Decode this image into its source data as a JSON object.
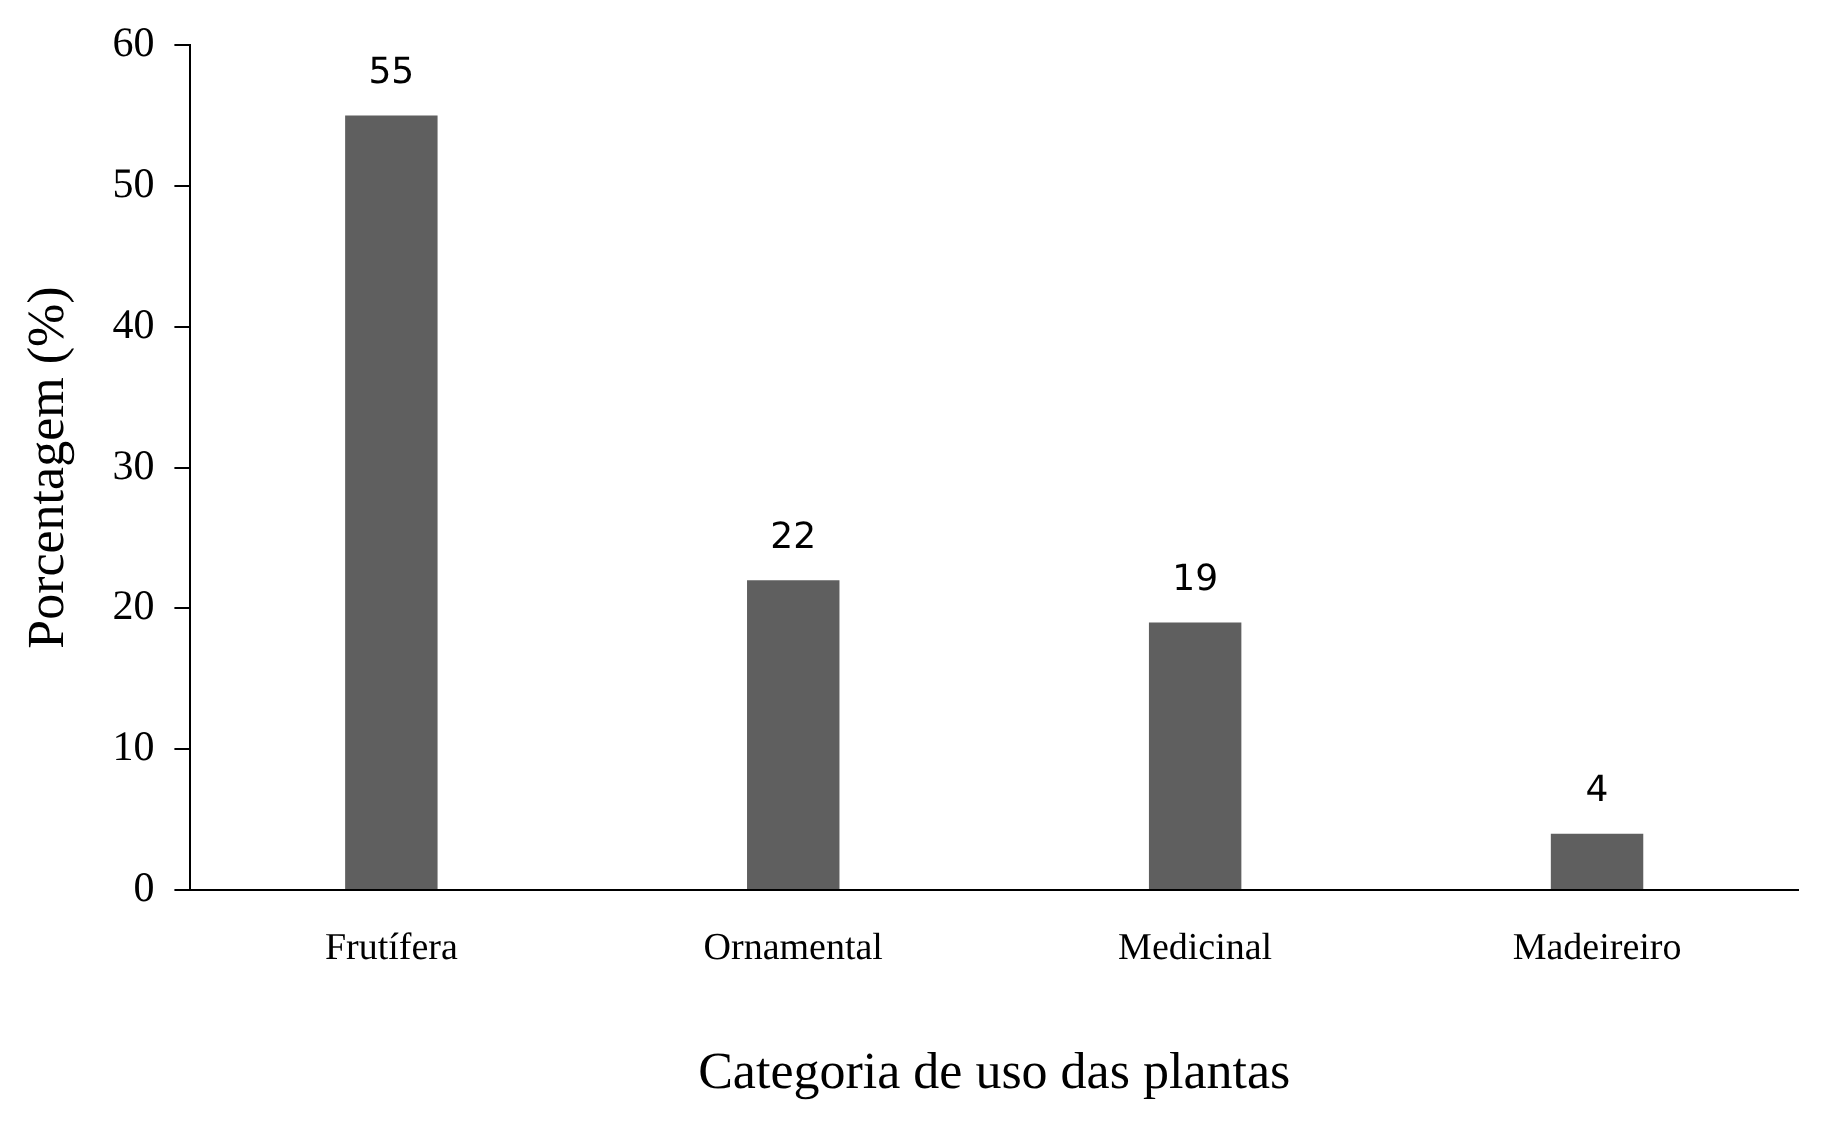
{
  "chart_data": {
    "type": "bar",
    "xlabel": "Categoria de uso das plantas",
    "ylabel": "Porcentagem (%)",
    "categories": [
      "Frutífera",
      "Ornamental",
      "Medicinal",
      "Madeireiro"
    ],
    "values": [
      55,
      22,
      19,
      4
    ],
    "color": "#5f5f5f",
    "ylim": [
      0,
      60
    ],
    "yticks": [
      0,
      10,
      20,
      30,
      40,
      50,
      60
    ],
    "grid": false,
    "legend": false,
    "data_labels": true
  }
}
